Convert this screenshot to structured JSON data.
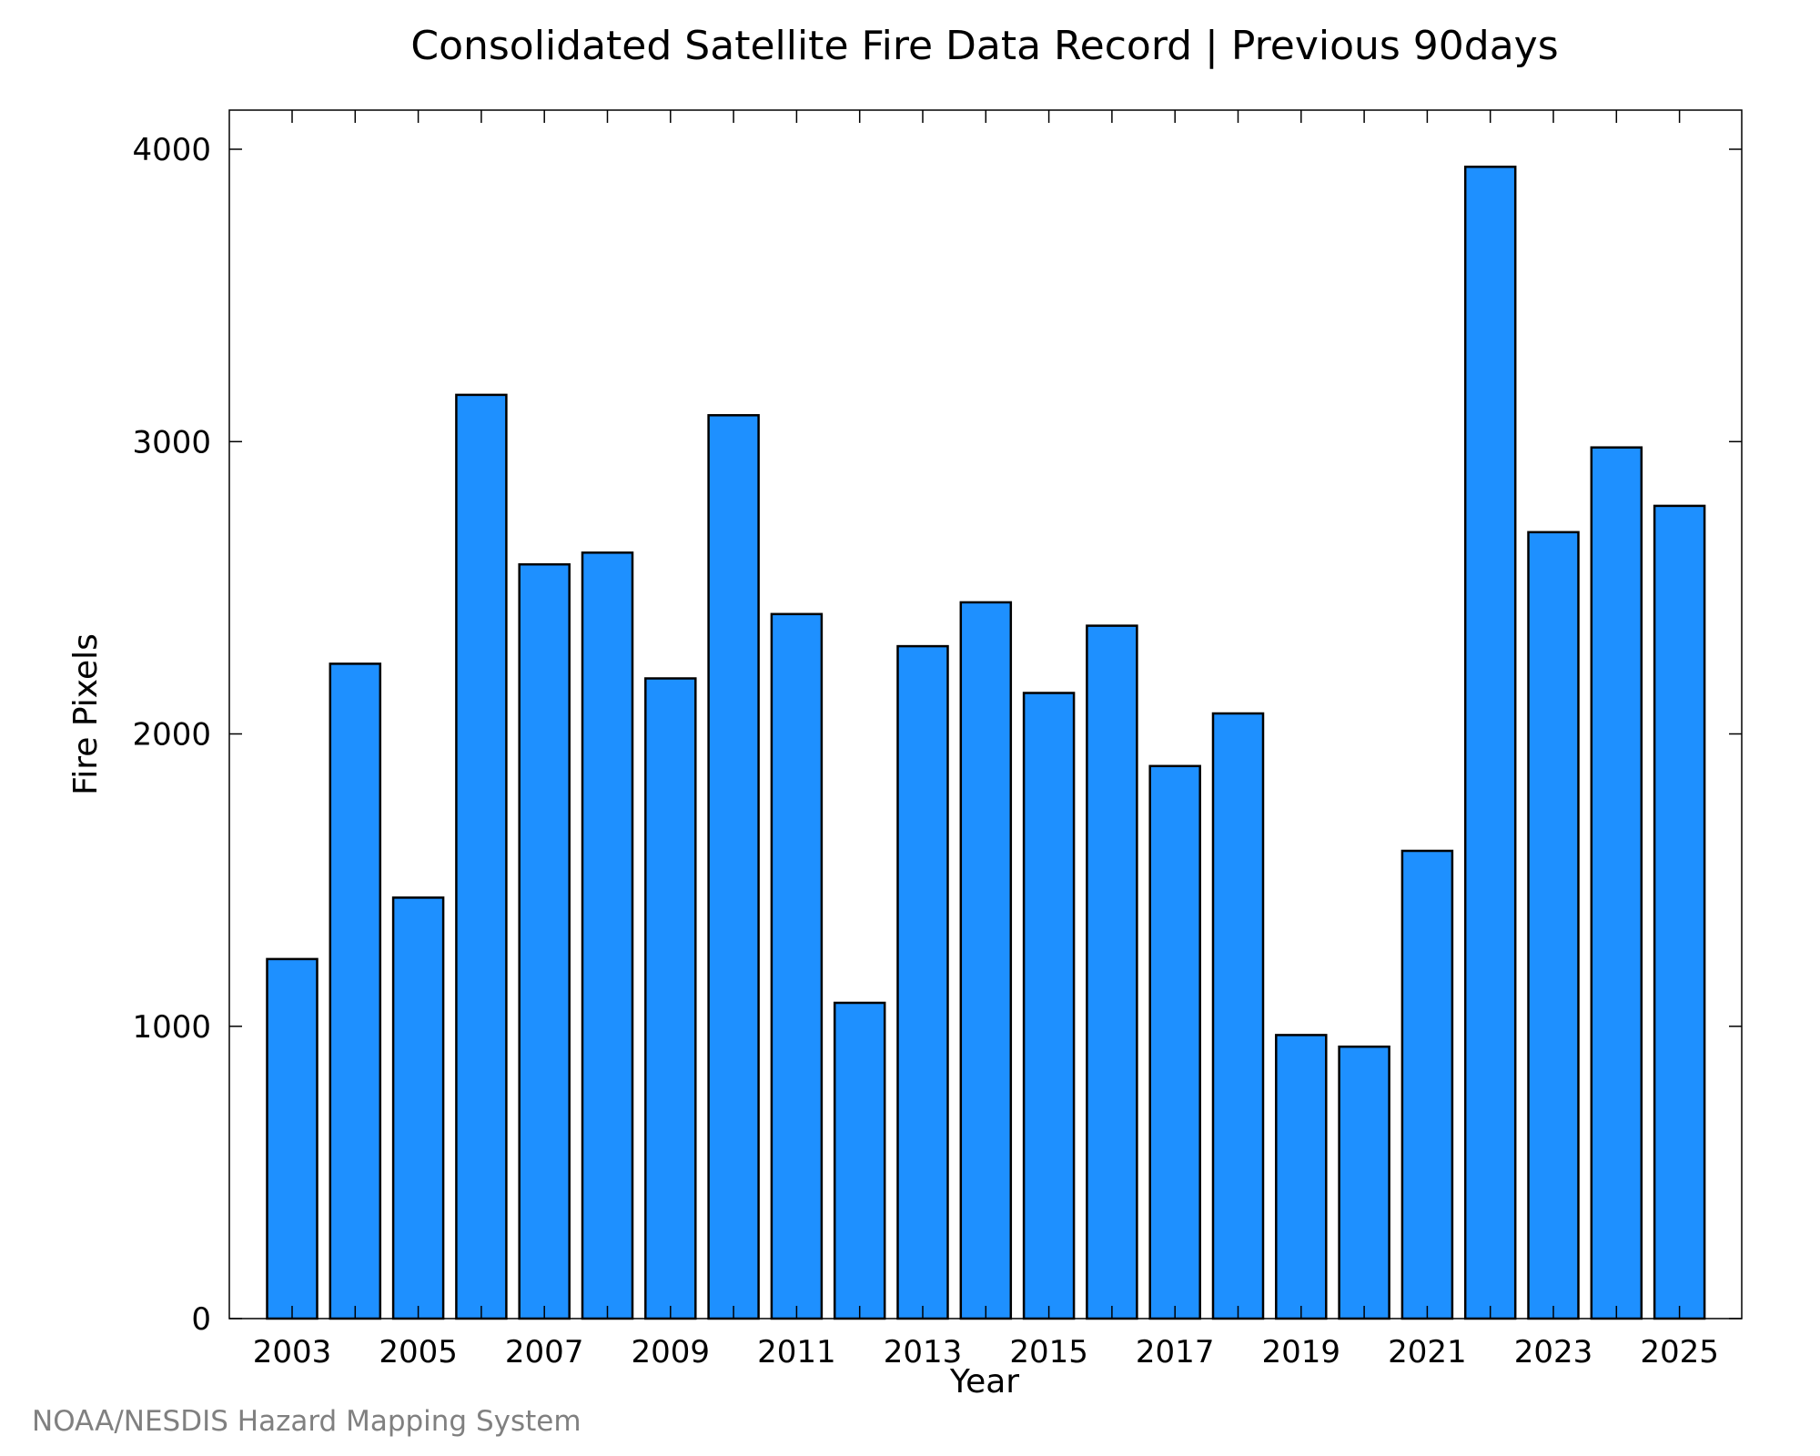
{
  "chart_data": {
    "type": "bar",
    "title": "Consolidated Satellite Fire Data Record | Previous 90days",
    "xlabel": "Year",
    "ylabel": "Fire Pixels",
    "categories": [
      "2003",
      "2004",
      "2005",
      "2006",
      "2007",
      "2008",
      "2009",
      "2010",
      "2011",
      "2012",
      "2013",
      "2014",
      "2015",
      "2016",
      "2017",
      "2018",
      "2019",
      "2020",
      "2021",
      "2022",
      "2023",
      "2024",
      "2025"
    ],
    "values": [
      1230,
      2240,
      1440,
      3160,
      2580,
      2620,
      2190,
      3090,
      2410,
      1080,
      2300,
      2450,
      2140,
      2370,
      1890,
      2070,
      970,
      930,
      1600,
      3940,
      2690,
      2980,
      2780
    ],
    "xticks": [
      "2003",
      "2005",
      "2007",
      "2009",
      "2011",
      "2013",
      "2015",
      "2017",
      "2019",
      "2021",
      "2023",
      "2025"
    ],
    "yticks": [
      0,
      1000,
      2000,
      3000,
      4000
    ],
    "ylim": [
      0,
      4140
    ],
    "bar_color": "#1e90ff",
    "bar_edge_color": "#000000",
    "grid": false
  },
  "footer": {
    "credit": "NOAA/NESDIS Hazard Mapping System"
  }
}
